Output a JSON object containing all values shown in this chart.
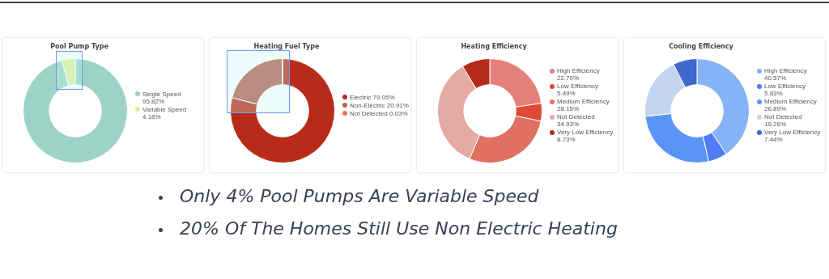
{
  "chart_data": [
    {
      "type": "donut",
      "title": "Pool Pump Type",
      "legend": "right",
      "categories": [
        "Single Speed",
        "Variable Speed"
      ],
      "values": [
        95.82,
        4.18
      ],
      "value_labels": [
        "95.82%",
        "4.18%"
      ],
      "colors": [
        "#9dd3c6",
        "#e0ee98"
      ]
    },
    {
      "type": "donut",
      "title": "Heating Fuel Type",
      "legend": "right",
      "categories": [
        "Electric",
        "Non-Electric",
        "Not Detected"
      ],
      "values": [
        79.05,
        20.91,
        0.03
      ],
      "value_labels": [
        "79.05%",
        "20.91%",
        "0.03%"
      ],
      "colors": [
        "#b82b1a",
        "#b3604f",
        "#e07060"
      ]
    },
    {
      "type": "donut",
      "title": "Heating Efficiency",
      "legend": "right",
      "categories": [
        "High Efficiency",
        "Low Efficiency",
        "Medium Efficiency",
        "Not Detected",
        "Very Low Efficiency"
      ],
      "values": [
        22.7,
        5.49,
        28.15,
        34.93,
        8.73
      ],
      "value_labels": [
        "22.70%",
        "5.49%",
        "28.15%",
        "34.93%",
        "8.73%"
      ],
      "colors": [
        "#e57f7a",
        "#e04a35",
        "#e07062",
        "#e5aaa3",
        "#b82a1c"
      ]
    },
    {
      "type": "donut",
      "title": "Cooling Efficiency",
      "legend": "right",
      "categories": [
        "High Efficiency",
        "Low Efficiency",
        "Medium Efficiency",
        "Not Detected",
        "Very Low Efficiency"
      ],
      "values": [
        40.57,
        5.83,
        26.89,
        19.26,
        7.44
      ],
      "value_labels": [
        "40.57%",
        "5.83%",
        "26.89%",
        "19.26%",
        "7.44%"
      ],
      "colors": [
        "#85b3f5",
        "#4f7df5",
        "#5b94f7",
        "#c3d5f0",
        "#4068cc"
      ]
    },
    {
      "type": "other",
      "annotations": [
        "Only 4% Pool Pumps Are Variable Speed",
        "20% Of The Homes Still Use Non Electric Heating"
      ]
    }
  ]
}
